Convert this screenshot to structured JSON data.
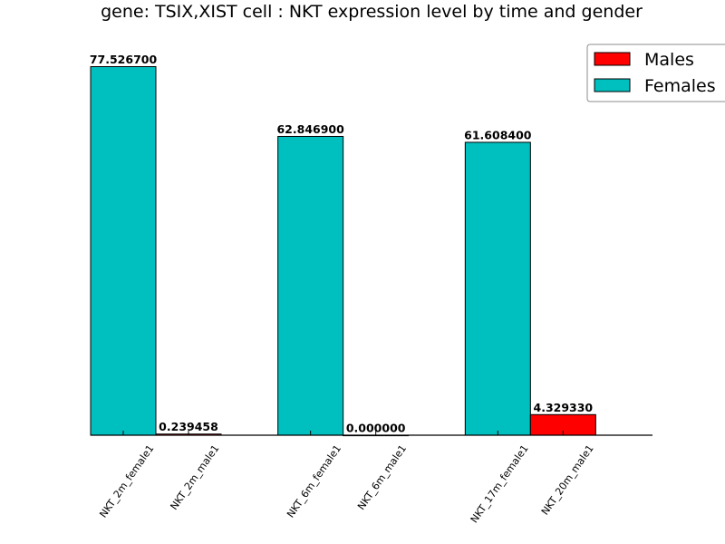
{
  "chart_data": {
    "type": "bar",
    "title": "gene: TSIX,XIST cell : NKT expression level by time and gender",
    "xlabel": "",
    "ylabel": "",
    "ylim": [
      0,
      80
    ],
    "grid": false,
    "legend_position": "top-right",
    "colors": {
      "Males": "#ff0000",
      "Females": "#00bfbf"
    },
    "categories": [
      "NKT_2m_female1",
      "NKT_2m_male1",
      "NKT_6m_female1",
      "NKT_6m_male1",
      "NKT_17m_female1",
      "NKT_20m_male1"
    ],
    "bars": [
      {
        "category": "NKT_2m_female1",
        "series": "Females",
        "value": 77.5267,
        "label": "77.526700"
      },
      {
        "category": "NKT_2m_male1",
        "series": "Males",
        "value": 0.239458,
        "label": "0.239458"
      },
      {
        "category": "NKT_6m_female1",
        "series": "Females",
        "value": 62.8469,
        "label": "62.846900"
      },
      {
        "category": "NKT_6m_male1",
        "series": "Males",
        "value": 0.0,
        "label": "0.000000"
      },
      {
        "category": "NKT_17m_female1",
        "series": "Females",
        "value": 61.6084,
        "label": "61.608400"
      },
      {
        "category": "NKT_20m_male1",
        "series": "Males",
        "value": 4.32933,
        "label": "4.329330"
      }
    ],
    "legend": [
      {
        "name": "Males",
        "color": "#ff0000"
      },
      {
        "name": "Females",
        "color": "#00bfbf"
      }
    ]
  }
}
